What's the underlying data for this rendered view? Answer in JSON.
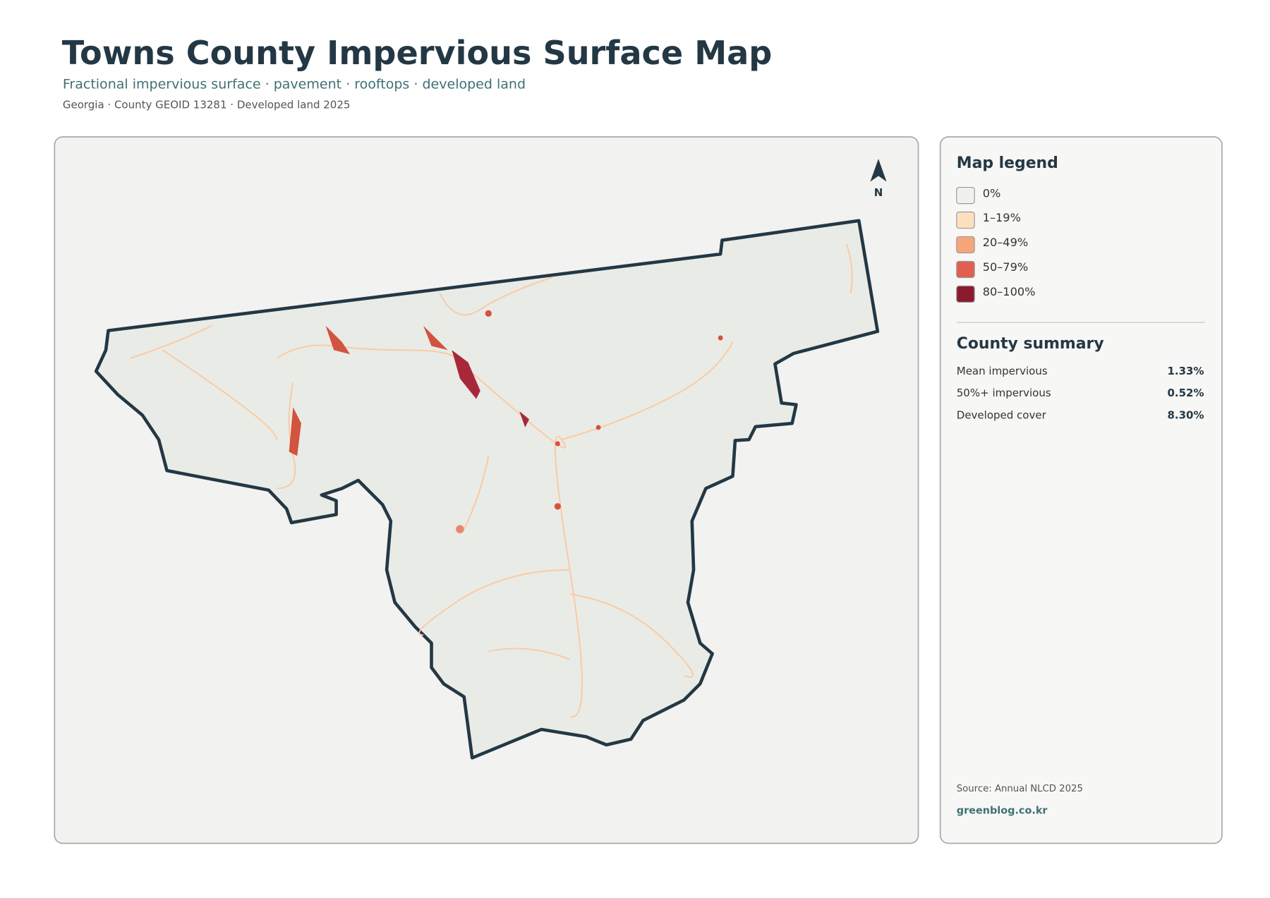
{
  "header": {
    "title": "Towns County Impervious Surface Map",
    "subtitle": "Fractional impervious surface · pavement · rooftops · developed land",
    "meta": "Georgia · County GEOID 13281 · Developed land 2025"
  },
  "map": {
    "north_label": "N"
  },
  "legend": {
    "title": "Map legend",
    "items": [
      {
        "label": "0%",
        "color": "#f0f0ee"
      },
      {
        "label": "1–19%",
        "color": "#fde0c0"
      },
      {
        "label": "20–49%",
        "color": "#f5a57a"
      },
      {
        "label": "50–79%",
        "color": "#e06050"
      },
      {
        "label": "80–100%",
        "color": "#8b1a2e"
      }
    ]
  },
  "summary": {
    "title": "County summary",
    "rows": [
      {
        "label": "Mean impervious",
        "value": "1.33%"
      },
      {
        "label": "50%+ impervious",
        "value": "0.52%"
      },
      {
        "label": "Developed cover",
        "value": "8.30%"
      }
    ]
  },
  "footer": {
    "source": "Source: Annual NLCD 2025",
    "credit": "greenblog.co.kr"
  }
}
